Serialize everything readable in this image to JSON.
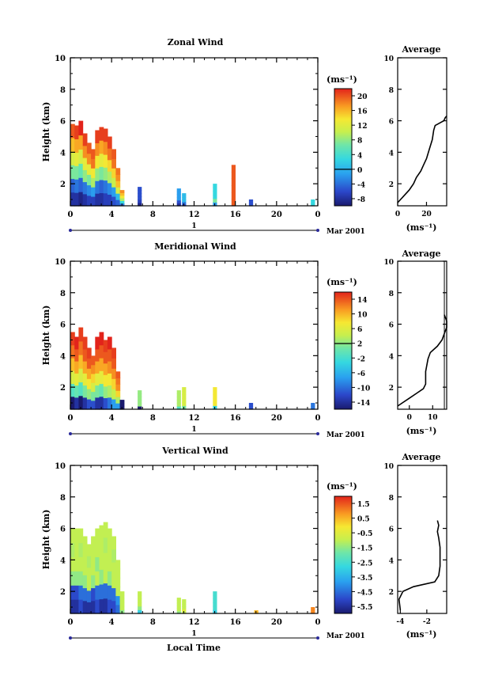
{
  "panels": [
    {
      "title": "Zonal Wind",
      "colorbar_unit": "(ms⁻¹)",
      "colorbar_ticks": [
        "20",
        "16",
        "12",
        "8",
        "4",
        "0",
        "-4",
        "-8"
      ],
      "profile_title": "Average",
      "profile_xlabel": "(ms⁻¹)",
      "profile_xticks": [
        "0",
        "20"
      ]
    },
    {
      "title": "Meridional Wind",
      "colorbar_unit": "(ms⁻¹)",
      "colorbar_ticks": [
        "14",
        "10",
        "6",
        "2",
        "-2",
        "-6",
        "-10",
        "-14"
      ],
      "profile_title": "Average",
      "profile_xlabel": "(ms⁻¹)",
      "profile_xticks": [
        "0",
        "10"
      ]
    },
    {
      "title": "Vertical Wind",
      "colorbar_unit": "(ms⁻¹)",
      "colorbar_ticks": [
        "1.5",
        "0.5",
        "-0.5",
        "-1.5",
        "-2.5",
        "-3.5",
        "-4.5",
        "-5.5"
      ],
      "profile_title": "Average",
      "profile_xlabel": "(ms⁻¹)",
      "profile_xticks": [
        "-4",
        "-2"
      ]
    }
  ],
  "ylabel": "Height (km)",
  "yticks": [
    "10",
    "8",
    "6",
    "4",
    "2"
  ],
  "xticks": [
    "0",
    "4",
    "8",
    "12",
    "16",
    "20",
    "0"
  ],
  "day_label": "1",
  "date_label": "Mar 2001",
  "xlabel": "Local Time",
  "chart_data": [
    {
      "type": "heatmap",
      "title": "Zonal Wind",
      "ylabel": "Height (km)",
      "ylim": [
        0.6,
        10
      ],
      "xlim": [
        0,
        24
      ],
      "colorbar_range": [
        -8,
        22
      ],
      "units": "ms-1",
      "columns": [
        {
          "x": 0.2,
          "top": 5.8,
          "v": [
            -6,
            -3,
            8,
            12,
            16,
            20
          ]
        },
        {
          "x": 0.6,
          "top": 5.7,
          "v": [
            -6,
            -2,
            8,
            13,
            17,
            21
          ]
        },
        {
          "x": 1.0,
          "top": 6.0,
          "v": [
            -7,
            -3,
            7,
            12,
            17,
            22
          ]
        },
        {
          "x": 1.4,
          "top": 5.2,
          "v": [
            -6,
            -2,
            9,
            13,
            18,
            21
          ]
        },
        {
          "x": 1.8,
          "top": 4.6,
          "v": [
            -5,
            -1,
            8,
            13,
            18,
            20
          ]
        },
        {
          "x": 2.2,
          "top": 4.2,
          "v": [
            -5,
            0,
            10,
            14,
            19,
            20
          ]
        },
        {
          "x": 2.6,
          "top": 5.4,
          "v": [
            -6,
            -2,
            9,
            14,
            18,
            21
          ]
        },
        {
          "x": 3.0,
          "top": 5.6,
          "v": [
            -6,
            -3,
            8,
            13,
            17,
            21
          ]
        },
        {
          "x": 3.4,
          "top": 5.5,
          "v": [
            -5,
            -2,
            9,
            14,
            18,
            21
          ]
        },
        {
          "x": 3.8,
          "top": 5.0,
          "v": [
            -5,
            -1,
            10,
            15,
            19,
            21
          ]
        },
        {
          "x": 4.2,
          "top": 4.2,
          "v": [
            -4,
            0,
            11,
            15,
            19,
            20
          ]
        },
        {
          "x": 4.6,
          "top": 3.0,
          "v": [
            -3,
            2,
            12,
            16,
            18,
            19
          ]
        },
        {
          "x": 5.0,
          "top": 1.6,
          "v": [
            -2,
            4,
            10,
            14,
            16,
            18
          ]
        },
        {
          "x": 6.7,
          "top": 1.8,
          "v": [
            -7,
            -5,
            -4,
            -4,
            -4,
            -4
          ]
        },
        {
          "x": 10.5,
          "top": 1.7,
          "v": [
            -6,
            -4,
            0,
            0,
            0,
            0
          ]
        },
        {
          "x": 11.0,
          "top": 1.4,
          "v": [
            -4,
            -2,
            2,
            2,
            2,
            2
          ]
        },
        {
          "x": 14.0,
          "top": 2.0,
          "v": [
            0,
            8,
            4,
            4,
            4,
            4
          ]
        },
        {
          "x": 15.8,
          "top": 3.2,
          "v": [
            20,
            20,
            20,
            20,
            20,
            20
          ]
        },
        {
          "x": 17.5,
          "top": 1.0,
          "v": [
            -4,
            -4,
            -4,
            -4,
            -4,
            -4
          ]
        },
        {
          "x": 23.5,
          "top": 1.0,
          "v": [
            4,
            4,
            4,
            4,
            4,
            4
          ]
        }
      ]
    },
    {
      "type": "heatmap",
      "title": "Meridional Wind",
      "ylabel": "Height (km)",
      "ylim": [
        0.6,
        10
      ],
      "xlim": [
        0,
        24
      ],
      "colorbar_range": [
        -14,
        16
      ],
      "units": "ms-1",
      "columns": [
        {
          "x": 0.2,
          "top": 5.5,
          "v": [
            -14,
            0,
            6,
            10,
            13,
            15
          ]
        },
        {
          "x": 0.6,
          "top": 5.2,
          "v": [
            -12,
            1,
            7,
            11,
            14,
            16
          ]
        },
        {
          "x": 1.0,
          "top": 5.8,
          "v": [
            -14,
            0,
            6,
            10,
            13,
            15
          ]
        },
        {
          "x": 1.4,
          "top": 5.2,
          "v": [
            -12,
            2,
            7,
            11,
            14,
            15
          ]
        },
        {
          "x": 1.8,
          "top": 4.5,
          "v": [
            -10,
            3,
            8,
            11,
            14,
            15
          ]
        },
        {
          "x": 2.2,
          "top": 4.0,
          "v": [
            -10,
            2,
            6,
            9,
            12,
            14
          ]
        },
        {
          "x": 2.6,
          "top": 5.2,
          "v": [
            -12,
            2,
            7,
            11,
            14,
            16
          ]
        },
        {
          "x": 3.0,
          "top": 5.5,
          "v": [
            -12,
            1,
            7,
            11,
            14,
            16
          ]
        },
        {
          "x": 3.4,
          "top": 5.0,
          "v": [
            -10,
            3,
            8,
            11,
            14,
            15
          ]
        },
        {
          "x": 3.8,
          "top": 5.2,
          "v": [
            -8,
            4,
            8,
            12,
            14,
            16
          ]
        },
        {
          "x": 4.2,
          "top": 4.5,
          "v": [
            -6,
            5,
            9,
            12,
            14,
            15
          ]
        },
        {
          "x": 4.6,
          "top": 3.0,
          "v": [
            -6,
            4,
            9,
            12,
            13,
            14
          ]
        },
        {
          "x": 5.0,
          "top": 1.2,
          "v": [
            -14,
            -14,
            -14,
            -14,
            -14,
            -14
          ]
        },
        {
          "x": 6.7,
          "top": 1.8,
          "v": [
            -14,
            3,
            3,
            3,
            3,
            3
          ]
        },
        {
          "x": 10.5,
          "top": 1.8,
          "v": [
            0,
            4,
            4,
            4,
            4,
            4
          ]
        },
        {
          "x": 11.0,
          "top": 2.0,
          "v": [
            2,
            6,
            6,
            6,
            6,
            6
          ]
        },
        {
          "x": 14.0,
          "top": 2.0,
          "v": [
            -2,
            8,
            8,
            8,
            8,
            8
          ]
        },
        {
          "x": 17.5,
          "top": 1.0,
          "v": [
            -10,
            -10,
            -10,
            -10,
            -10,
            -10
          ]
        },
        {
          "x": 23.5,
          "top": 1.0,
          "v": [
            -8,
            -8,
            -8,
            -8,
            -8,
            -8
          ]
        }
      ]
    },
    {
      "type": "heatmap",
      "title": "Vertical Wind",
      "ylabel": "Height (km)",
      "ylim": [
        0.6,
        10
      ],
      "xlim": [
        0,
        24
      ],
      "colorbar_range": [
        -6,
        2
      ],
      "units": "ms-1",
      "columns": [
        {
          "x": 0.2,
          "top": 6.0,
          "v": [
            -5.5,
            -5.0,
            -1.5,
            -1.0,
            -1.2,
            -1.0
          ]
        },
        {
          "x": 0.6,
          "top": 6.0,
          "v": [
            -5.5,
            -5.0,
            -1.5,
            -1.0,
            -1.0,
            -1.0
          ]
        },
        {
          "x": 1.0,
          "top": 6.0,
          "v": [
            -5.0,
            -4.5,
            -1.5,
            -1.0,
            -1.2,
            -1.0
          ]
        },
        {
          "x": 1.4,
          "top": 5.5,
          "v": [
            -5.5,
            -4.5,
            -1.5,
            -1.0,
            -1.0,
            -1.0
          ]
        },
        {
          "x": 1.8,
          "top": 5.0,
          "v": [
            -5.5,
            -4.5,
            -1.0,
            -1.0,
            -1.2,
            -1.0
          ]
        },
        {
          "x": 2.2,
          "top": 5.5,
          "v": [
            -5.5,
            -5.0,
            -1.5,
            -1.0,
            -1.0,
            -1.0
          ]
        },
        {
          "x": 2.6,
          "top": 6.0,
          "v": [
            -5.0,
            -4.5,
            -1.0,
            -1.5,
            -1.0,
            -1.0
          ]
        },
        {
          "x": 3.0,
          "top": 6.2,
          "v": [
            -5.5,
            -4.5,
            -1.5,
            -1.0,
            -1.0,
            -1.0
          ]
        },
        {
          "x": 3.4,
          "top": 6.4,
          "v": [
            -5.5,
            -4.5,
            -1.0,
            -1.0,
            -1.2,
            -1.0
          ]
        },
        {
          "x": 3.8,
          "top": 6.0,
          "v": [
            -5.0,
            -4.5,
            -1.5,
            -1.0,
            -1.0,
            -1.0
          ]
        },
        {
          "x": 4.2,
          "top": 5.5,
          "v": [
            -5.0,
            -4.5,
            -1.0,
            -1.0,
            -1.2,
            -1.0
          ]
        },
        {
          "x": 4.6,
          "top": 4.0,
          "v": [
            -4.5,
            -4.0,
            -1.0,
            -1.0,
            -1.0,
            -1.0
          ]
        },
        {
          "x": 5.0,
          "top": 2.0,
          "v": [
            -1.5,
            -1.0,
            -1.0,
            -1.0,
            -1.0,
            -1.0
          ]
        },
        {
          "x": 6.7,
          "top": 2.0,
          "v": [
            -3.0,
            -1.5,
            -1.0,
            -1.0,
            -1.0,
            -1.0
          ]
        },
        {
          "x": 10.5,
          "top": 1.6,
          "v": [
            -1.5,
            -1.0,
            -1.0,
            -1.0,
            -1.0,
            -1.0
          ]
        },
        {
          "x": 11.0,
          "top": 1.5,
          "v": [
            -1.0,
            -0.5,
            -1.0,
            -1.0,
            -1.0,
            -1.0
          ]
        },
        {
          "x": 14.0,
          "top": 2.0,
          "v": [
            -3.0,
            -2.5,
            -2.5,
            -2.5,
            -2.5,
            -2.5
          ]
        },
        {
          "x": 18.0,
          "top": 0.8,
          "v": [
            0.5,
            0.5,
            0.5,
            0.5,
            0.5,
            0.5
          ]
        },
        {
          "x": 23.5,
          "top": 1.0,
          "v": [
            1.0,
            1.0,
            1.0,
            1.0,
            1.0,
            1.0
          ]
        }
      ]
    },
    {
      "type": "line",
      "title": "Average",
      "xlabel": "(ms⁻¹)",
      "ylim": [
        0.6,
        10
      ],
      "xlim": [
        0,
        34
      ],
      "x": [
        0,
        4,
        8,
        11,
        13,
        16,
        18,
        20,
        22,
        24,
        25,
        26,
        28,
        30,
        32,
        33,
        34
      ],
      "y": [
        0.8,
        1.2,
        1.6,
        2.0,
        2.4,
        2.8,
        3.2,
        3.6,
        4.2,
        4.8,
        5.4,
        5.7,
        5.8,
        5.9,
        6.0,
        6.2,
        6.3
      ]
    },
    {
      "type": "line",
      "title": "Average",
      "xlabel": "(ms⁻¹)",
      "ylim": [
        0.6,
        10
      ],
      "xlim": [
        -5,
        16
      ],
      "x": [
        -5,
        -3,
        0,
        3,
        6,
        7,
        7,
        8,
        9,
        12,
        14,
        15,
        16,
        16,
        15
      ],
      "y": [
        0.8,
        1.0,
        1.3,
        1.6,
        1.9,
        2.2,
        3.0,
        3.8,
        4.2,
        4.6,
        5.0,
        5.4,
        5.8,
        6.2,
        6.6
      ],
      "vertical_reference_x": 15
    },
    {
      "type": "line",
      "title": "Average",
      "xlabel": "(ms⁻¹)",
      "ylim": [
        0.6,
        10
      ],
      "xlim": [
        -4.2,
        -0.5
      ],
      "x": [
        -4.0,
        -4.1,
        -3.8,
        -3.0,
        -1.4,
        -1.1,
        -1.0,
        -1.0,
        -1.0,
        -1.1,
        -1.2,
        -1.1,
        -1.2
      ],
      "y": [
        0.8,
        1.5,
        2.0,
        2.3,
        2.6,
        3.0,
        3.6,
        4.2,
        4.8,
        5.4,
        5.8,
        6.2,
        6.5
      ]
    }
  ]
}
